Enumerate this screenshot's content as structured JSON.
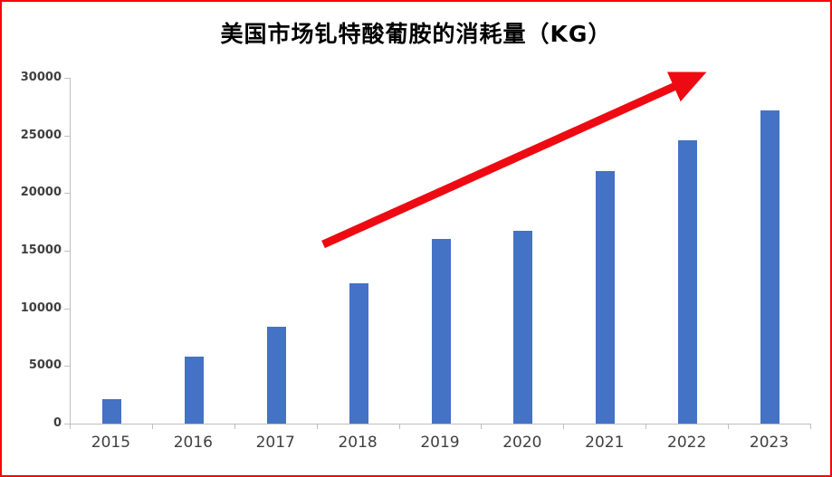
{
  "chart": {
    "border_color": "#ff0000",
    "bar_color": "#4472C4",
    "arrow_color": "#ee0a12",
    "axis_color": "#bfbfbf",
    "label_color": "#404040"
  },
  "chart_data": {
    "type": "bar",
    "title": "美国市场钆特酸葡胺的消耗量（KG）",
    "categories": [
      "2015",
      "2016",
      "2017",
      "2018",
      "2019",
      "2020",
      "2021",
      "2022",
      "2023"
    ],
    "values": [
      2100,
      5800,
      8400,
      12200,
      16000,
      16700,
      21900,
      24600,
      27200
    ],
    "xlabel": "",
    "ylabel": "",
    "ylim": [
      0,
      30000
    ],
    "yticks": [
      0,
      5000,
      10000,
      15000,
      20000,
      25000,
      30000
    ],
    "grid": false,
    "legend": "none",
    "annotations": [
      {
        "type": "arrow",
        "description": "red upward trend arrow across the bars",
        "direction": "up-right",
        "color": "#ee0a12"
      }
    ]
  }
}
